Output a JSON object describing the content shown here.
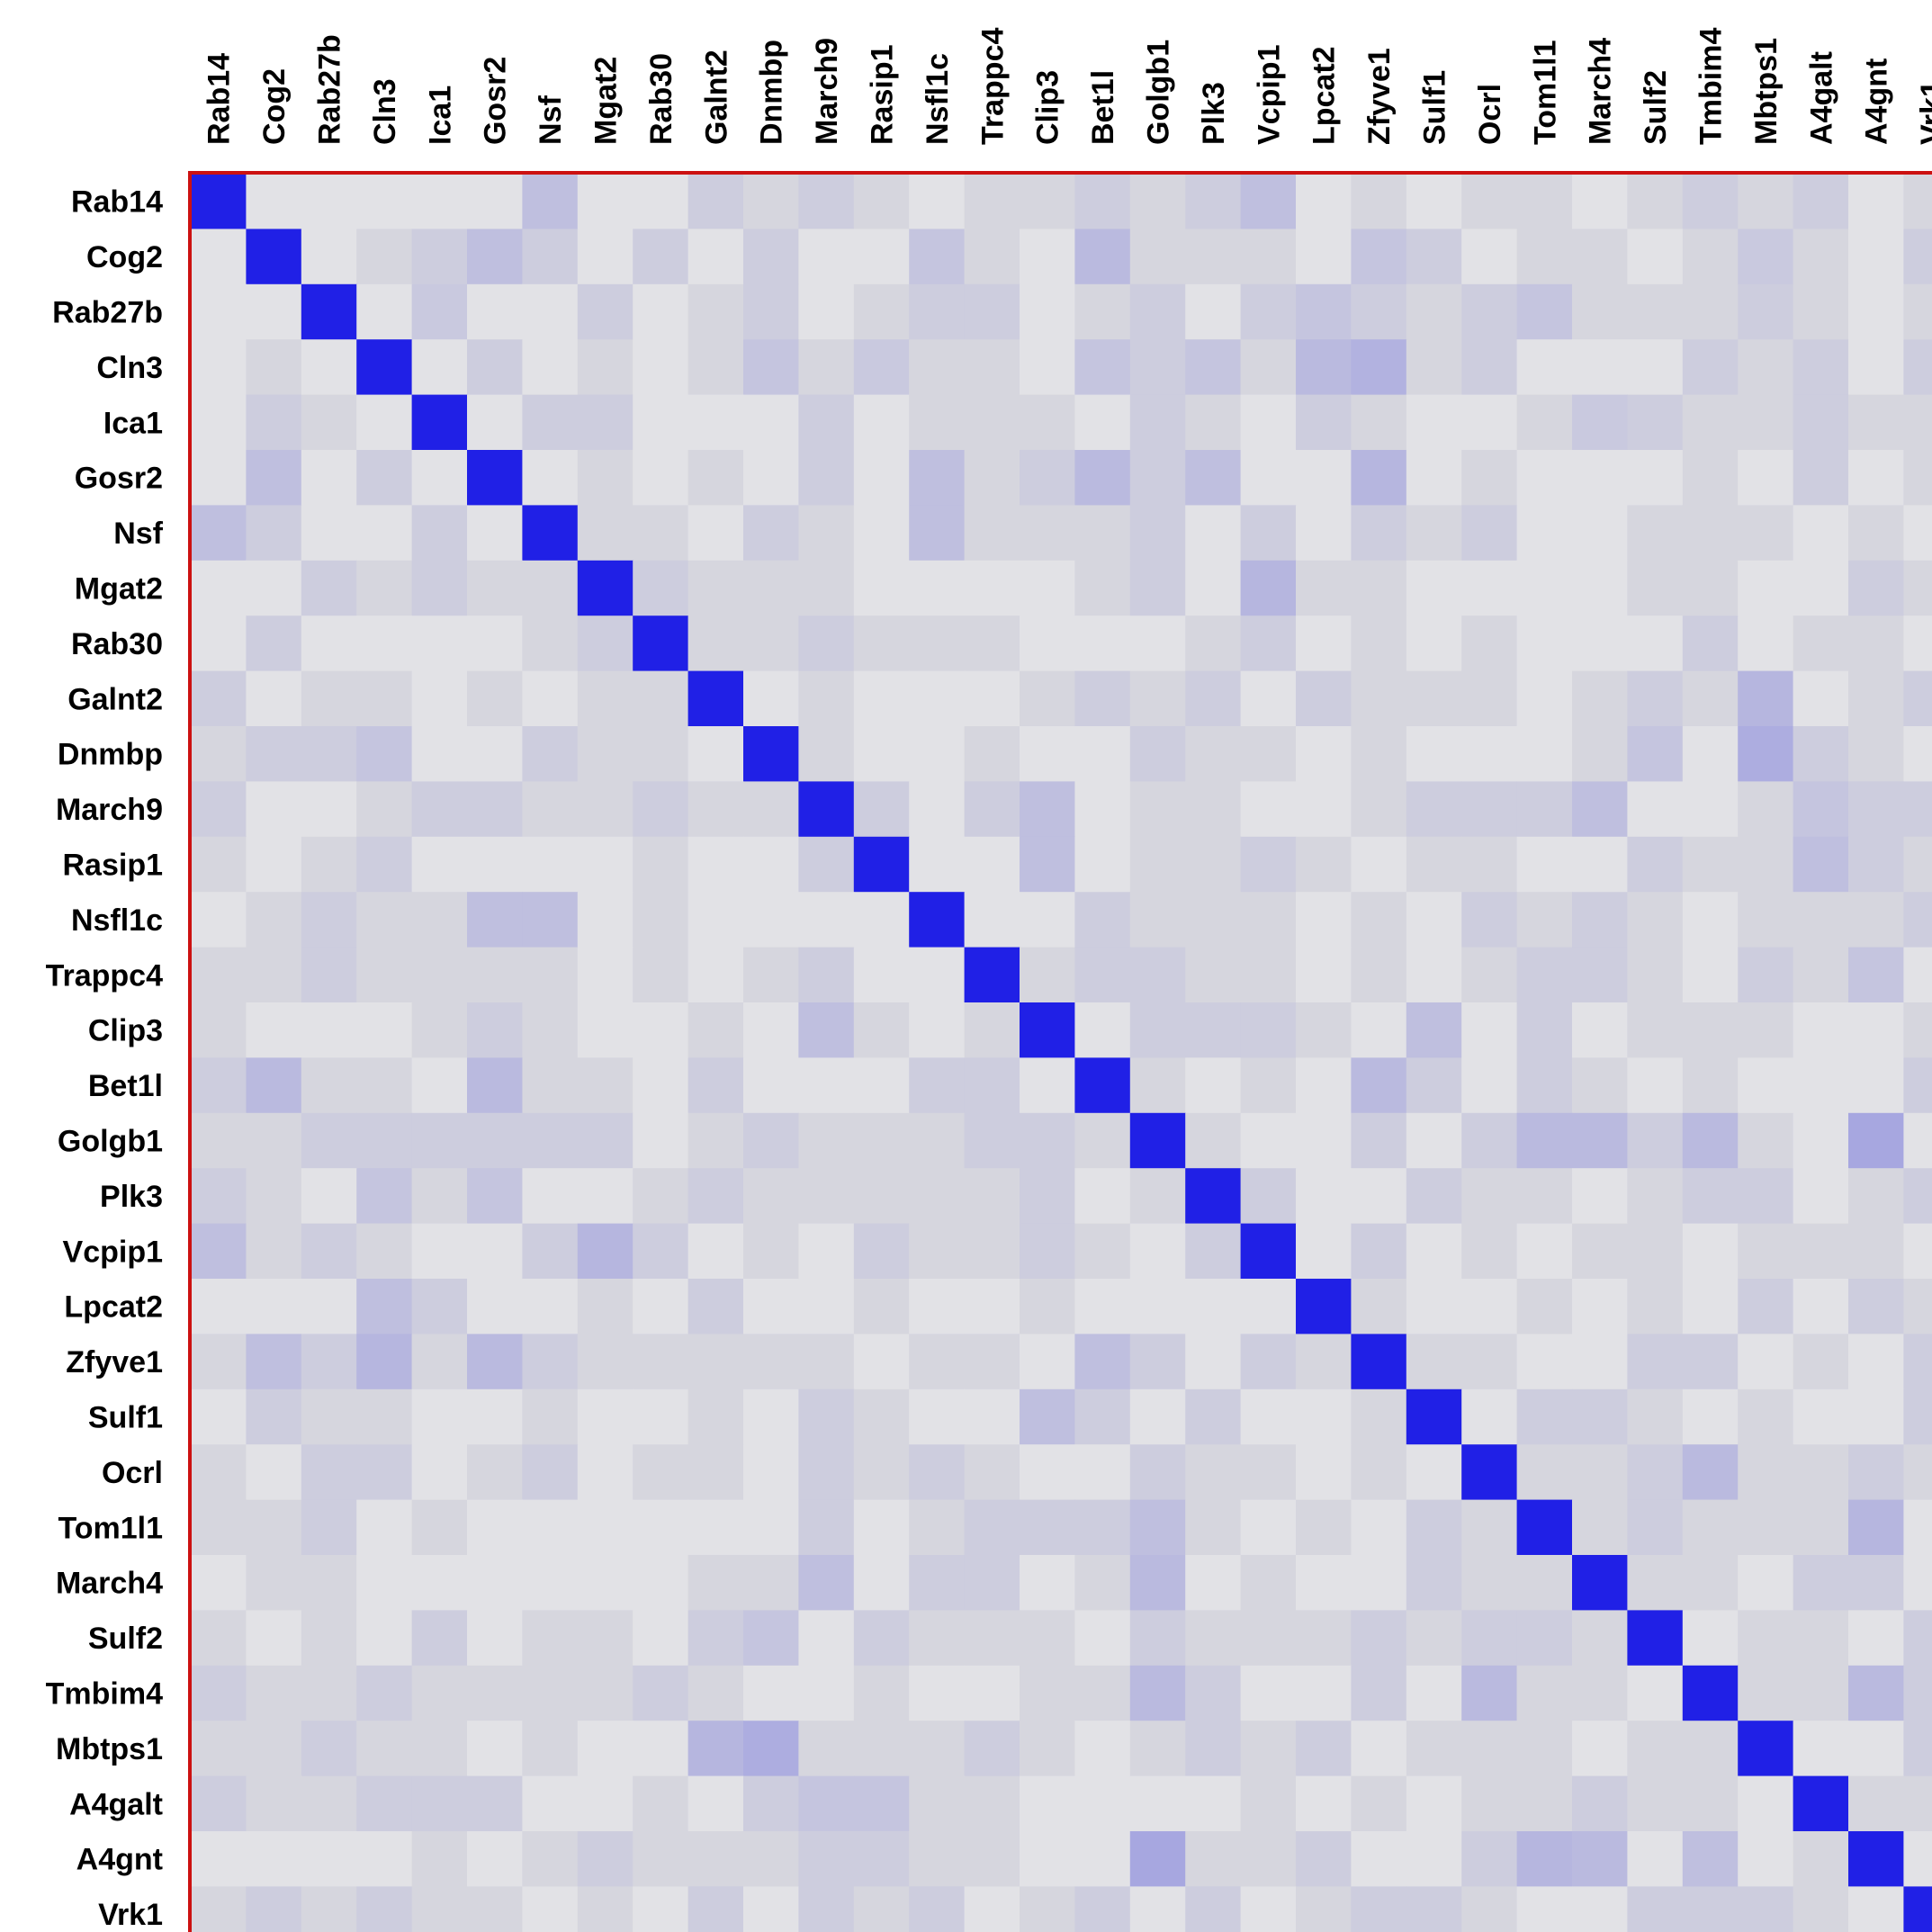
{
  "chart_data": {
    "type": "heatmap",
    "title": "",
    "xlabel": "",
    "ylabel": "",
    "labels": [
      "Rab14",
      "Cog2",
      "Rab27b",
      "Cln3",
      "Ica1",
      "Gosr2",
      "Nsf",
      "Mgat2",
      "Rab30",
      "Galnt2",
      "Dnmbp",
      "March9",
      "Rasip1",
      "Nsfl1c",
      "Trappc4",
      "Clip3",
      "Bet1l",
      "Golgb1",
      "Plk3",
      "Vcpip1",
      "Lpcat2",
      "Zfyve1",
      "Sulf1",
      "Ocrl",
      "Tom1l1",
      "March4",
      "Sulf2",
      "Tmbim4",
      "Mbtps1",
      "A4galt",
      "A4gnt",
      "Vrk1"
    ],
    "diagonal_value": 1,
    "background_value": 0.03,
    "value_range": [
      0,
      1
    ],
    "notable_values": [
      {
        "row": "Rab14",
        "col": "Nsf",
        "value": 0.15
      },
      {
        "row": "Rab14",
        "col": "Vcpip1",
        "value": 0.15
      },
      {
        "row": "Cog2",
        "col": "Gosr2",
        "value": 0.15
      },
      {
        "row": "Cog2",
        "col": "Nsfl1c",
        "value": 0.12
      },
      {
        "row": "Cog2",
        "col": "Bet1l",
        "value": 0.18
      },
      {
        "row": "Cog2",
        "col": "Zfyve1",
        "value": 0.12
      },
      {
        "row": "Cog2",
        "col": "Mbtps1",
        "value": 0.1
      },
      {
        "row": "Rab27b",
        "col": "Ica1",
        "value": 0.1
      },
      {
        "row": "Rab27b",
        "col": "Lpcat2",
        "value": 0.12
      },
      {
        "row": "Rab27b",
        "col": "Tom1l1",
        "value": 0.12
      },
      {
        "row": "Cln3",
        "col": "Dnmbp",
        "value": 0.12
      },
      {
        "row": "Cln3",
        "col": "Rasip1",
        "value": 0.1
      },
      {
        "row": "Cln3",
        "col": "Bet1l",
        "value": 0.12
      },
      {
        "row": "Cln3",
        "col": "Plk3",
        "value": 0.12
      },
      {
        "row": "Cln3",
        "col": "Lpcat2",
        "value": 0.18
      },
      {
        "row": "Cln3",
        "col": "Zfyve1",
        "value": 0.22
      },
      {
        "row": "Ica1",
        "col": "March4",
        "value": 0.1
      },
      {
        "row": "Gosr2",
        "col": "Cog2",
        "value": 0.15
      },
      {
        "row": "Gosr2",
        "col": "Nsfl1c",
        "value": 0.15
      },
      {
        "row": "Gosr2",
        "col": "Bet1l",
        "value": 0.18
      },
      {
        "row": "Gosr2",
        "col": "Plk3",
        "value": 0.15
      },
      {
        "row": "Gosr2",
        "col": "Zfyve1",
        "value": 0.2
      },
      {
        "row": "Nsf",
        "col": "Rab14",
        "value": 0.15
      },
      {
        "row": "Nsf",
        "col": "Nsfl1c",
        "value": 0.15
      },
      {
        "row": "Mgat2",
        "col": "Vcpip1",
        "value": 0.2
      },
      {
        "row": "Galnt2",
        "col": "Mbtps1",
        "value": 0.2
      },
      {
        "row": "Dnmbp",
        "col": "Cln3",
        "value": 0.12
      },
      {
        "row": "Dnmbp",
        "col": "Sulf2",
        "value": 0.12
      },
      {
        "row": "Dnmbp",
        "col": "Mbtps1",
        "value": 0.25
      },
      {
        "row": "March9",
        "col": "Clip3",
        "value": 0.15
      },
      {
        "row": "March9",
        "col": "March4",
        "value": 0.15
      },
      {
        "row": "March9",
        "col": "A4galt",
        "value": 0.12
      },
      {
        "row": "Rasip1",
        "col": "Clip3",
        "value": 0.15
      },
      {
        "row": "Rasip1",
        "col": "A4galt",
        "value": 0.15
      },
      {
        "row": "Nsfl1c",
        "col": "Gosr2",
        "value": 0.15
      },
      {
        "row": "Nsfl1c",
        "col": "Nsf",
        "value": 0.15
      },
      {
        "row": "Trappc4",
        "col": "A4gnt",
        "value": 0.12
      },
      {
        "row": "Clip3",
        "col": "March9",
        "value": 0.15
      },
      {
        "row": "Clip3",
        "col": "Sulf1",
        "value": 0.15
      },
      {
        "row": "Bet1l",
        "col": "Cog2",
        "value": 0.18
      },
      {
        "row": "Bet1l",
        "col": "Gosr2",
        "value": 0.18
      },
      {
        "row": "Bet1l",
        "col": "Zfyve1",
        "value": 0.18
      },
      {
        "row": "Golgb1",
        "col": "Tom1l1",
        "value": 0.18
      },
      {
        "row": "Golgb1",
        "col": "March4",
        "value": 0.18
      },
      {
        "row": "Golgb1",
        "col": "Tmbim4",
        "value": 0.18
      },
      {
        "row": "Golgb1",
        "col": "A4gnt",
        "value": 0.28
      },
      {
        "row": "Plk3",
        "col": "Cln3",
        "value": 0.12
      },
      {
        "row": "Plk3",
        "col": "Gosr2",
        "value": 0.12
      },
      {
        "row": "Vcpip1",
        "col": "Rab14",
        "value": 0.15
      },
      {
        "row": "Vcpip1",
        "col": "Mgat2",
        "value": 0.2
      },
      {
        "row": "Lpcat2",
        "col": "Cln3",
        "value": 0.15
      },
      {
        "row": "Zfyve1",
        "col": "Cog2",
        "value": 0.15
      },
      {
        "row": "Zfyve1",
        "col": "Cln3",
        "value": 0.2
      },
      {
        "row": "Zfyve1",
        "col": "Gosr2",
        "value": 0.18
      },
      {
        "row": "Zfyve1",
        "col": "Bet1l",
        "value": 0.15
      },
      {
        "row": "Sulf1",
        "col": "Clip3",
        "value": 0.15
      },
      {
        "row": "Ocrl",
        "col": "Tmbim4",
        "value": 0.18
      },
      {
        "row": "Tom1l1",
        "col": "Golgb1",
        "value": 0.15
      },
      {
        "row": "Tom1l1",
        "col": "A4gnt",
        "value": 0.2
      },
      {
        "row": "March4",
        "col": "March9",
        "value": 0.15
      },
      {
        "row": "March4",
        "col": "Golgb1",
        "value": 0.18
      },
      {
        "row": "Sulf2",
        "col": "Dnmbp",
        "value": 0.12
      },
      {
        "row": "Tmbim4",
        "col": "Golgb1",
        "value": 0.18
      },
      {
        "row": "Tmbim4",
        "col": "Ocrl",
        "value": 0.18
      },
      {
        "row": "Tmbim4",
        "col": "A4gnt",
        "value": 0.18
      },
      {
        "row": "Mbtps1",
        "col": "Galnt2",
        "value": 0.2
      },
      {
        "row": "Mbtps1",
        "col": "Dnmbp",
        "value": 0.25
      },
      {
        "row": "A4galt",
        "col": "March9",
        "value": 0.12
      },
      {
        "row": "A4galt",
        "col": "Rasip1",
        "value": 0.12
      },
      {
        "row": "A4gnt",
        "col": "Golgb1",
        "value": 0.28
      },
      {
        "row": "A4gnt",
        "col": "Tom1l1",
        "value": 0.2
      },
      {
        "row": "A4gnt",
        "col": "March4",
        "value": 0.18
      },
      {
        "row": "A4gnt",
        "col": "Tmbim4",
        "value": 0.15
      }
    ]
  },
  "colors": {
    "background_cell": "#d6d6de",
    "low_cell": "#e2e2e6",
    "diagonal_cell": "#2020e6",
    "frame": "#cc1111",
    "label_text": "#000000"
  }
}
